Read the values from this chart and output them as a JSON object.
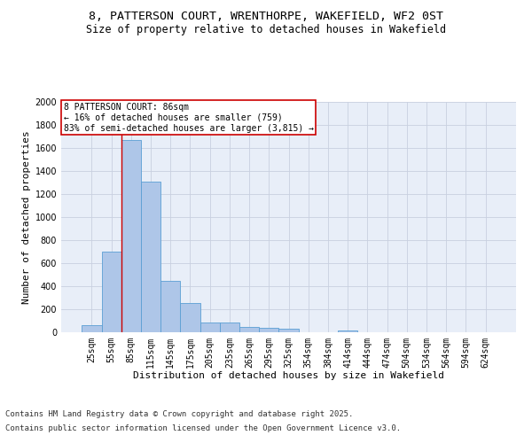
{
  "title_line1": "8, PATTERSON COURT, WRENTHORPE, WAKEFIELD, WF2 0ST",
  "title_line2": "Size of property relative to detached houses in Wakefield",
  "xlabel": "Distribution of detached houses by size in Wakefield",
  "ylabel": "Number of detached properties",
  "categories": [
    "25sqm",
    "55sqm",
    "85sqm",
    "115sqm",
    "145sqm",
    "175sqm",
    "205sqm",
    "235sqm",
    "265sqm",
    "295sqm",
    "325sqm",
    "354sqm",
    "384sqm",
    "414sqm",
    "444sqm",
    "474sqm",
    "504sqm",
    "534sqm",
    "564sqm",
    "594sqm",
    "624sqm"
  ],
  "values": [
    60,
    700,
    1670,
    1310,
    450,
    255,
    88,
    88,
    50,
    38,
    28,
    0,
    0,
    15,
    0,
    0,
    0,
    0,
    0,
    0,
    0
  ],
  "bar_color": "#aec6e8",
  "bar_edge_color": "#5a9fd4",
  "vline_x_index": 2,
  "vline_color": "#cc0000",
  "annotation_box_text": "8 PATTERSON COURT: 86sqm\n← 16% of detached houses are smaller (759)\n83% of semi-detached houses are larger (3,815) →",
  "annotation_box_color": "#cc0000",
  "annotation_bg": "#ffffff",
  "ylim": [
    0,
    2000
  ],
  "yticks": [
    0,
    200,
    400,
    600,
    800,
    1000,
    1200,
    1400,
    1600,
    1800,
    2000
  ],
  "grid_color": "#c8d0e0",
  "background_color": "#e8eef8",
  "footer_line1": "Contains HM Land Registry data © Crown copyright and database right 2025.",
  "footer_line2": "Contains public sector information licensed under the Open Government Licence v3.0.",
  "title_fontsize": 9.5,
  "subtitle_fontsize": 8.5,
  "axis_label_fontsize": 8,
  "tick_fontsize": 7,
  "annotation_fontsize": 7,
  "footer_fontsize": 6.5
}
